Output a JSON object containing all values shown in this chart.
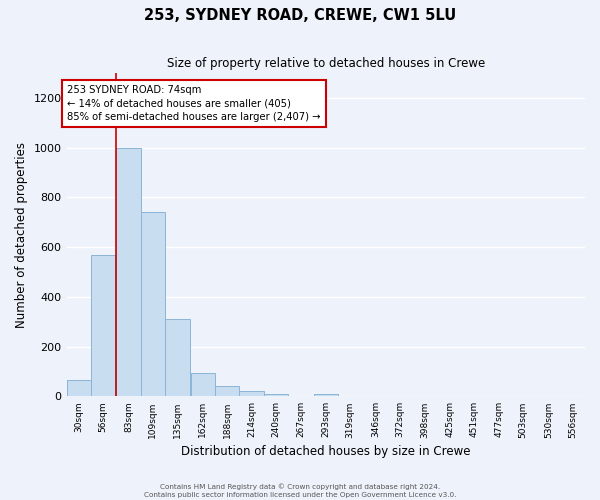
{
  "title": "253, SYDNEY ROAD, CREWE, CW1 5LU",
  "subtitle": "Size of property relative to detached houses in Crewe",
  "xlabel": "Distribution of detached houses by size in Crewe",
  "ylabel": "Number of detached properties",
  "bar_color": "#c8ddf0",
  "bar_edge_color": "#8ab4d8",
  "background_color": "#eef2fa",
  "grid_color": "#ffffff",
  "vline_color": "#cc0000",
  "vline_x_idx": 2,
  "annotation_text_line1": "253 SYDNEY ROAD: 74sqm",
  "annotation_text_line2": "← 14% of detached houses are smaller (405)",
  "annotation_text_line3": "85% of semi-detached houses are larger (2,407) →",
  "categories": [
    "30sqm",
    "56sqm",
    "83sqm",
    "109sqm",
    "135sqm",
    "162sqm",
    "188sqm",
    "214sqm",
    "240sqm",
    "267sqm",
    "293sqm",
    "319sqm",
    "346sqm",
    "372sqm",
    "398sqm",
    "425sqm",
    "451sqm",
    "477sqm",
    "503sqm",
    "530sqm",
    "556sqm"
  ],
  "bin_starts": [
    30,
    56,
    83,
    109,
    135,
    162,
    188,
    214,
    240,
    267,
    293,
    319,
    346,
    372,
    398,
    425,
    451,
    477,
    503,
    530,
    556
  ],
  "bin_width": 26,
  "values": [
    65,
    570,
    1000,
    740,
    310,
    95,
    40,
    20,
    10,
    0,
    10,
    0,
    0,
    0,
    0,
    0,
    0,
    0,
    0,
    0,
    0
  ],
  "ylim": [
    0,
    1300
  ],
  "yticks": [
    0,
    200,
    400,
    600,
    800,
    1000,
    1200
  ],
  "footer_line1": "Contains HM Land Registry data © Crown copyright and database right 2024.",
  "footer_line2": "Contains public sector information licensed under the Open Government Licence v3.0."
}
